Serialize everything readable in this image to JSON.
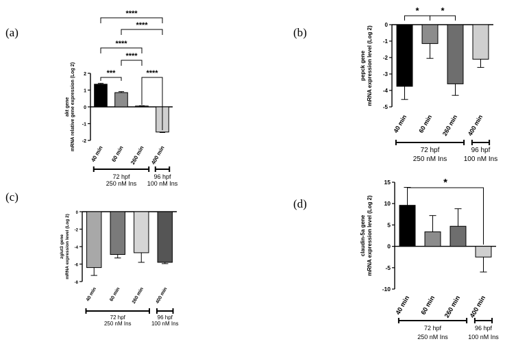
{
  "chart_data": [
    {
      "panel_label": "(a)",
      "type": "bar",
      "ylabel_gene": "akt gene",
      "ylabel_rest": "mRNA relative gene expression (Log 2)",
      "ylim": [
        -2,
        2
      ],
      "yticks": [
        -2,
        -1,
        0,
        1,
        2
      ],
      "categories": [
        "40 min",
        "60 min",
        "260 min",
        "400 min"
      ],
      "values": [
        1.35,
        0.85,
        0.05,
        -1.5
      ],
      "errors": [
        0.05,
        0.06,
        0.02,
        0.03
      ],
      "colors": [
        "#000000",
        "#8c8c8c",
        "#6e6e6e",
        "#cfcfcf"
      ],
      "significance": [
        {
          "from": 0,
          "to": 3,
          "label": "****"
        },
        {
          "from": 1,
          "to": 3,
          "label": "****"
        },
        {
          "from": 0,
          "to": 2,
          "label": "****"
        },
        {
          "from": 1,
          "to": 2,
          "label": "****"
        },
        {
          "from": 0,
          "to": 1,
          "label": "***"
        },
        {
          "from": 2,
          "to": 3,
          "label": "****"
        }
      ],
      "groups": [
        {
          "from": 0,
          "to": 2,
          "line1": "72 hpf",
          "line2": "250 nM Ins"
        },
        {
          "from": 3,
          "to": 3,
          "line1": "96 hpf",
          "line2": "100 nM Ins"
        }
      ]
    },
    {
      "panel_label": "(b)",
      "type": "bar",
      "ylabel_gene": "pepck gene",
      "ylabel_rest": "mRNA expression level (Log 2)",
      "ylim": [
        -5,
        0
      ],
      "yticks": [
        0,
        -1,
        -2,
        -3,
        -4,
        -5
      ],
      "categories": [
        "40 min",
        "60 min",
        "260 min",
        "400 min"
      ],
      "values": [
        -3.75,
        -1.15,
        -3.6,
        -2.1
      ],
      "errors": [
        0.8,
        0.9,
        0.7,
        0.5
      ],
      "colors": [
        "#000000",
        "#8c8c8c",
        "#6e6e6e",
        "#cfcfcf"
      ],
      "significance": [
        {
          "from": 0,
          "to": 1,
          "label": "*"
        },
        {
          "from": 1,
          "to": 2,
          "label": "*"
        }
      ],
      "groups": [
        {
          "from": 0,
          "to": 2,
          "line1": "72 hpf",
          "line2": "250 nM Ins"
        },
        {
          "from": 3,
          "to": 3,
          "line1": "96 hpf",
          "line2": "100 nM Ins"
        }
      ]
    },
    {
      "panel_label": "(c)",
      "type": "bar",
      "ylabel_gene": "zglut3 gene",
      "ylabel_rest": "mRNA expression level (Log 2)",
      "ylim": [
        -8,
        0
      ],
      "yticks": [
        0,
        -2,
        -4,
        -6,
        -8
      ],
      "categories": [
        "40 min",
        "60 min",
        "260 min",
        "400 min"
      ],
      "values": [
        -6.4,
        -4.9,
        -4.7,
        -5.8
      ],
      "errors": [
        0.9,
        0.4,
        1.1,
        0.15
      ],
      "colors": [
        "#a8a8a8",
        "#7a7a7a",
        "#d6d6d6",
        "#555555"
      ],
      "significance": [],
      "groups": [
        {
          "from": 0,
          "to": 2,
          "line1": "72 hpf",
          "line2": "250 nM Ins"
        },
        {
          "from": 3,
          "to": 3,
          "line1": "96 hpf",
          "line2": "100 nM Ins"
        }
      ]
    },
    {
      "panel_label": "(d)",
      "type": "bar",
      "ylabel_gene": "claudin-5a gene",
      "ylabel_rest": "mRNA expression level (Log 2)",
      "ylim": [
        -10,
        15
      ],
      "yticks": [
        15,
        10,
        5,
        0,
        -5,
        -10
      ],
      "categories": [
        "40 min",
        "60 min",
        "260 min",
        "400 min"
      ],
      "values": [
        9.6,
        3.4,
        4.7,
        -2.5
      ],
      "errors": [
        4.2,
        3.8,
        4.1,
        3.5
      ],
      "colors": [
        "#000000",
        "#8c8c8c",
        "#6e6e6e",
        "#cfcfcf"
      ],
      "significance": [
        {
          "from": 0,
          "to": 3,
          "label": "*"
        }
      ],
      "groups": [
        {
          "from": 0,
          "to": 2,
          "line1": "72 hpf",
          "line2": "250 nM Ins"
        },
        {
          "from": 3,
          "to": 3,
          "line1": "96 hpf",
          "line2": "100 nM Ins"
        }
      ]
    }
  ]
}
